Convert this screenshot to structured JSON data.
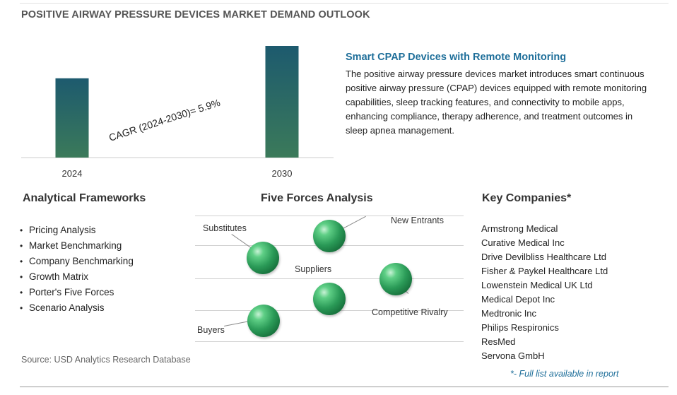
{
  "page_title": "POSITIVE AIRWAY PRESSURE DEVICES MARKET DEMAND OUTLOOK",
  "chart_data": {
    "type": "bar",
    "categories": [
      "2024",
      "2030"
    ],
    "values": [
      0.71,
      1.0
    ],
    "value_scale": "relative",
    "annotation": "CAGR (2024-2030)=  5.9%",
    "colors": {
      "bar_top": "#1d5a6e",
      "bar_bottom": "#3b7a5a",
      "axis": "#cccccc"
    }
  },
  "feature": {
    "title": "Smart CPAP Devices with Remote Monitoring",
    "text": "The positive airway pressure devices market introduces smart continuous positive airway pressure (CPAP) devices equipped with remote monitoring capabilities, sleep tracking features, and connectivity to mobile apps, enhancing compliance, therapy adherence, and treatment outcomes in sleep apnea management."
  },
  "frameworks": {
    "heading": "Analytical Frameworks",
    "bullet": "•",
    "items": [
      "Pricing Analysis",
      "Market Benchmarking",
      "Company Benchmarking",
      "Growth Matrix",
      "Porter's Five Forces",
      "Scenario Analysis"
    ]
  },
  "five_forces": {
    "heading": "Five Forces Analysis",
    "labels": {
      "substitutes": "Substitutes",
      "new_entrants": "New Entrants",
      "suppliers": "Suppliers",
      "competitive_rivalry": "Competitive Rivalry",
      "buyers": "Buyers"
    }
  },
  "companies": {
    "heading": "Key Companies*",
    "items": [
      "Armstrong Medical",
      "Curative Medical Inc",
      "Drive Devilbliss Healthcare Ltd",
      "Fisher & Paykel Healthcare Ltd",
      "Lowenstein Medical UK Ltd",
      "Medical Depot Inc",
      "Medtronic Inc",
      "Philips Respironics",
      "ResMed",
      "Servona GmbH"
    ],
    "footnote": "*- Full list available in report"
  },
  "source": "Source: USD Analytics Research Database",
  "colors": {
    "accent": "#1f6f9a",
    "sphere": "#2a9a57"
  }
}
